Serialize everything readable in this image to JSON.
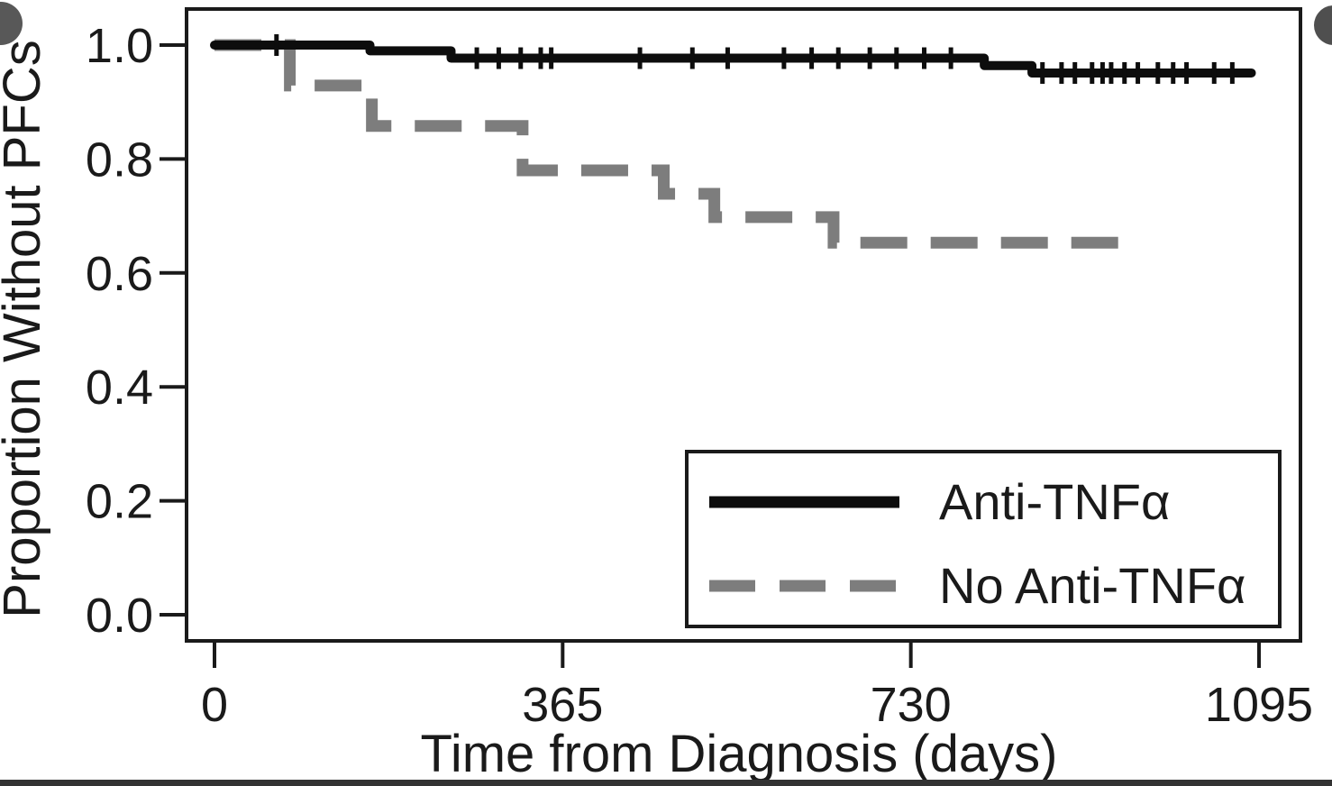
{
  "figure": {
    "background_color": "#ffffff",
    "badge_left_color": "#585858",
    "badge_right_color": "#4f4f4f",
    "bottom_divider_color": "#333333",
    "axis_color": "#1a1a1a"
  },
  "chart_data": {
    "type": "line",
    "subtype": "kaplan-meier-step",
    "title": "",
    "xlabel": "Time from Diagnosis (days)",
    "ylabel": "Proportion Without PFCs",
    "x_ticks": [
      0,
      365,
      730,
      1095
    ],
    "y_ticks": [
      0.0,
      0.2,
      0.4,
      0.6,
      0.8,
      1.0
    ],
    "xlim": [
      0,
      1140
    ],
    "ylim": [
      0.0,
      1.05
    ],
    "grid": false,
    "legend_position": "bottom-right",
    "series": [
      {
        "name": "Anti-TNFα",
        "line_style": "solid",
        "color": "#0d0d0d",
        "step_points": [
          [
            0,
            1.0
          ],
          [
            163,
            0.99
          ],
          [
            248,
            0.977
          ],
          [
            807,
            0.964
          ],
          [
            857,
            0.951
          ]
        ],
        "end_day": 1087,
        "censor_days": [
          65,
          275,
          298,
          321,
          342,
          353,
          446,
          501,
          538,
          597,
          626,
          654,
          687,
          715,
          744,
          772,
          868,
          888,
          902,
          920,
          931,
          940,
          954,
          968,
          989,
          1005,
          1019,
          1048,
          1067
        ]
      },
      {
        "name": "No Anti-TNFα",
        "line_style": "dashed",
        "color": "#7d7d7d",
        "step_points": [
          [
            0,
            1.0
          ],
          [
            79,
            0.929
          ],
          [
            165,
            0.858
          ],
          [
            323,
            0.78
          ],
          [
            471,
            0.739
          ],
          [
            524,
            0.698
          ],
          [
            649,
            0.653
          ]
        ],
        "end_day": 954,
        "censor_days": []
      }
    ]
  }
}
